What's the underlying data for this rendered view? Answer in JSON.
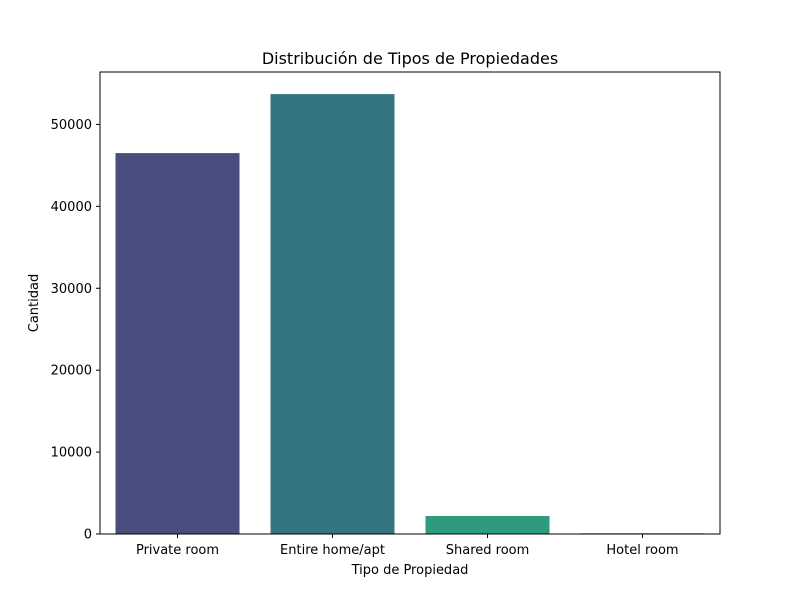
{
  "chart_data": {
    "type": "bar",
    "title": "Distribución de Tipos de Propiedades",
    "xlabel": "Tipo de Propiedad",
    "ylabel": "Cantidad",
    "categories": [
      "Private room",
      "Entire home/apt",
      "Shared room",
      "Hotel room"
    ],
    "values": [
      46500,
      53700,
      2200,
      100
    ],
    "ylim": [
      0,
      56400
    ],
    "yticks": [
      0,
      10000,
      20000,
      30000,
      40000,
      50000
    ],
    "colors": [
      "#4a4e7f",
      "#357481",
      "#2e9b7f",
      "#8fbf5e"
    ],
    "grid": false,
    "legend": "none"
  }
}
